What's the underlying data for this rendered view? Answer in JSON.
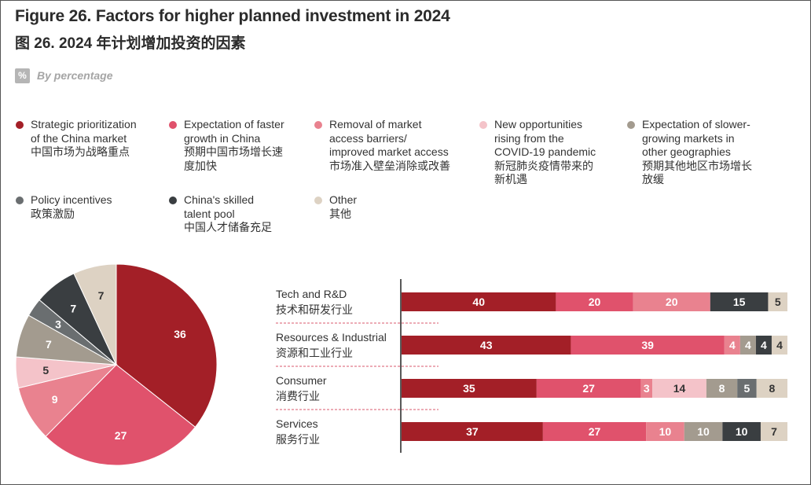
{
  "title_en": "Figure 26. Factors for higher planned investment in 2024",
  "title_zh": "图 26. 2024 年计划增加投资的因素",
  "unit": {
    "icon": "%",
    "label": "By percentage"
  },
  "legend": [
    {
      "en1": "Strategic prioritization",
      "en2": "of the China market",
      "en3": "",
      "zh1": "中国市场为战略重点",
      "zh2": "",
      "color": "#a31f27"
    },
    {
      "en1": "Expectation of faster",
      "en2": "growth in China",
      "en3": "",
      "zh1": "预期中国市场增长速",
      "zh2": "度加快",
      "color": "#e0526c"
    },
    {
      "en1": "Removal of market",
      "en2": "access barriers/",
      "en3": "improved market access",
      "zh1": "市场准入壁垒消除或改善",
      "zh2": "",
      "color": "#e9828f"
    },
    {
      "en1": "New opportunities",
      "en2": "rising from the",
      "en3": "COVID-19 pandemic",
      "zh1": "新冠肺炎疫情带来的",
      "zh2": "新机遇",
      "color": "#f4c3c9"
    },
    {
      "en1": "Expectation of slower-",
      "en2": "growing markets in",
      "en3": "other geographies",
      "zh1": "预期其他地区市场增长",
      "zh2": "放缓",
      "color": "#a39b8f"
    },
    {
      "en1": "Policy incentives",
      "en2": "",
      "en3": "",
      "zh1": "政策激励",
      "zh2": "",
      "color": "#6a6e70"
    },
    {
      "en1": "China's skilled",
      "en2": "talent pool",
      "en3": "",
      "zh1": "中国人才储备充足",
      "zh2": "",
      "color": "#3a3e41"
    },
    {
      "en1": "Other",
      "en2": "",
      "en3": "",
      "zh1": "其他",
      "zh2": "",
      "color": "#ddd2c3"
    }
  ],
  "chart_data": [
    {
      "type": "pie",
      "series_colors": [
        "#a31f27",
        "#e0526c",
        "#e9828f",
        "#f4c3c9",
        "#a39b8f",
        "#6a6e70",
        "#3a3e41",
        "#ddd2c3"
      ],
      "values": [
        36,
        27,
        9,
        5,
        7,
        3,
        7,
        7
      ],
      "value_label_colors": [
        "#ffffff",
        "#ffffff",
        "#ffffff",
        "#333333",
        "#ffffff",
        "#ffffff",
        "#ffffff",
        "#333333"
      ]
    },
    {
      "type": "bar",
      "orientation": "horizontal",
      "stacked": true,
      "categories": [
        {
          "en": "Tech and R&D",
          "zh": "技术和研发行业"
        },
        {
          "en": "Resources & Industrial",
          "zh": "资源和工业行业"
        },
        {
          "en": "Consumer",
          "zh": "消费行业"
        },
        {
          "en": "Services",
          "zh": "服务行业"
        }
      ],
      "series_colors": [
        "#a31f27",
        "#e0526c",
        "#e9828f",
        "#f4c3c9",
        "#a39b8f",
        "#6a6e70",
        "#3a3e41",
        "#ddd2c3"
      ],
      "value_label_colors": [
        "#ffffff",
        "#ffffff",
        "#ffffff",
        "#333333",
        "#ffffff",
        "#ffffff",
        "#ffffff",
        "#333333"
      ],
      "values": [
        [
          40,
          20,
          20,
          0,
          0,
          0,
          15,
          5
        ],
        [
          43,
          39,
          4,
          0,
          4,
          0,
          4,
          4
        ],
        [
          35,
          27,
          3,
          14,
          8,
          5,
          0,
          8
        ],
        [
          37,
          27,
          10,
          0,
          10,
          0,
          10,
          7
        ]
      ],
      "xlim": [
        0,
        100
      ]
    }
  ]
}
